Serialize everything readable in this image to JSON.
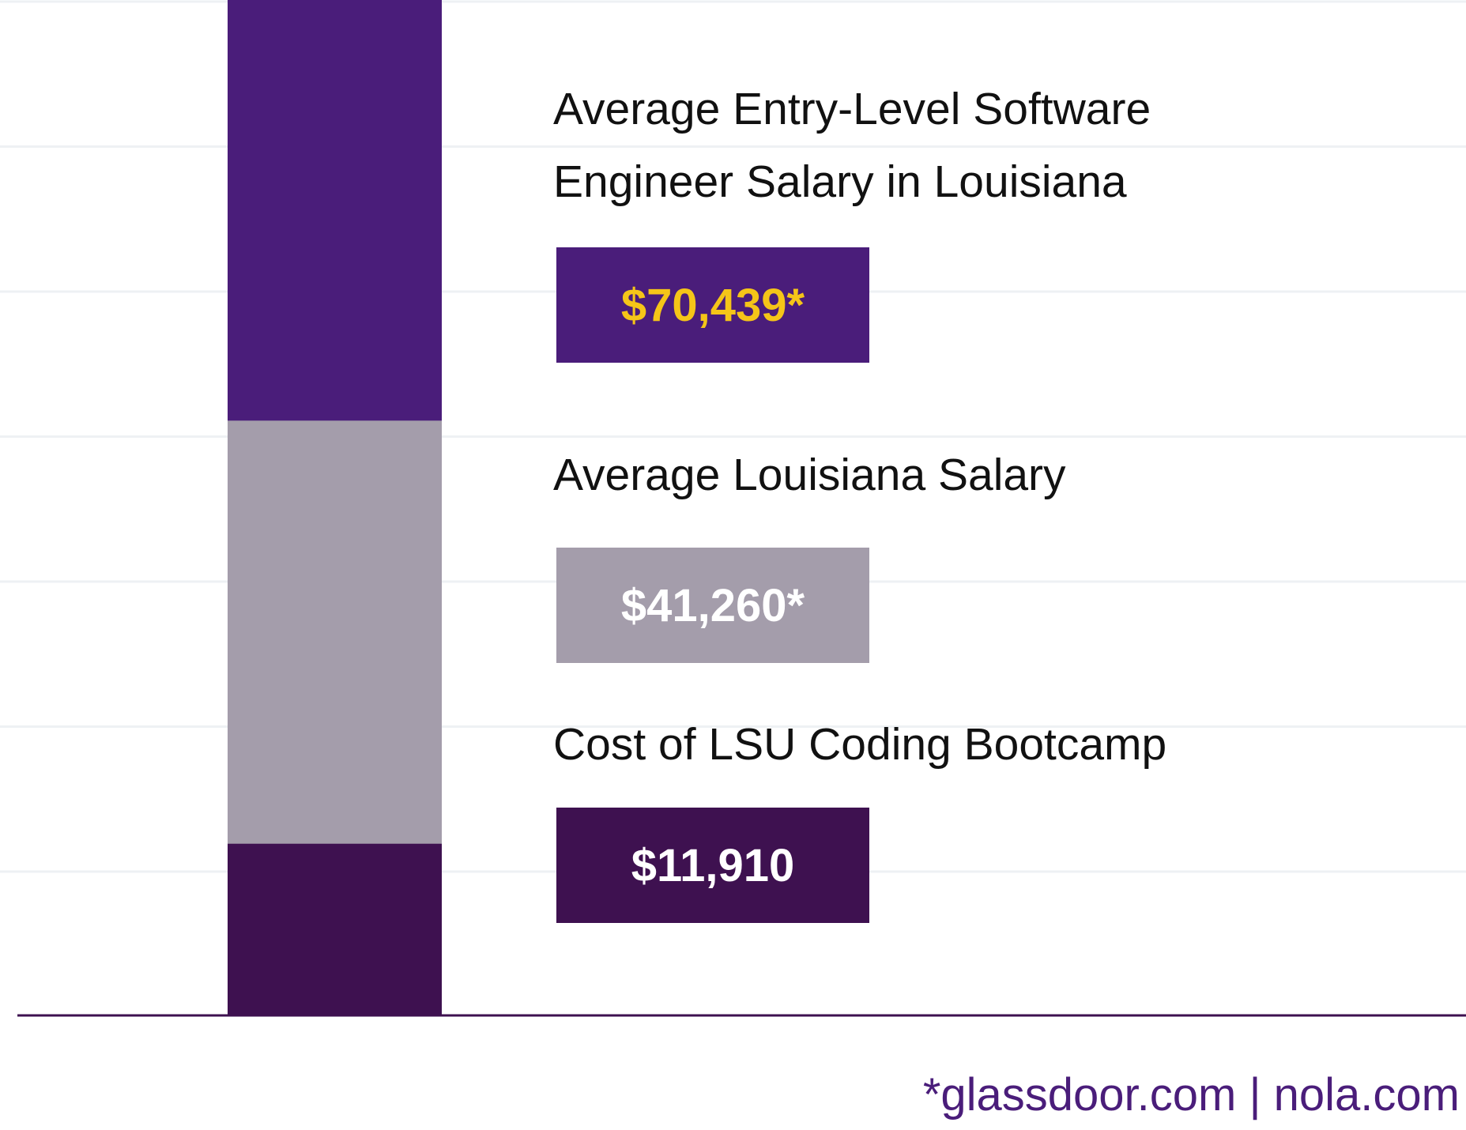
{
  "chart_data": {
    "type": "bar",
    "stacked_layers": true,
    "categories": [
      ""
    ],
    "series": [
      {
        "name": "Average Entry-Level Software Engineer Salary in Louisiana",
        "values": [
          70439
        ],
        "value_label": "$70,439*",
        "color": "#4a1d7a",
        "label_color": "#f5c518"
      },
      {
        "name": "Average Louisiana Salary",
        "values": [
          41260
        ],
        "value_label": "$41,260*",
        "color": "#a49dab",
        "label_color": "#ffffff"
      },
      {
        "name": "Cost of LSU Coding Bootcamp",
        "values": [
          11910
        ],
        "value_label": "$11,910",
        "color": "#3e1150",
        "label_color": "#ffffff"
      }
    ],
    "title": "",
    "xlabel": "",
    "ylabel": "",
    "ylim": [
      0,
      70439
    ],
    "grid": true,
    "gridline_count": 7
  },
  "labels": {
    "entry_level_line1": "Average Entry-Level Software",
    "entry_level_line2": "Engineer Salary in Louisiana",
    "average_salary": "Average Louisiana Salary",
    "bootcamp_cost": "Cost of LSU Coding Bootcamp"
  },
  "values": {
    "entry_level": "$70,439*",
    "average_salary": "$41,260*",
    "bootcamp_cost": "$11,910"
  },
  "source": "*glassdoor.com | nola.com",
  "colors": {
    "gridline": "#eef1f4",
    "baseline": "#3e1150",
    "source_text": "#4a1d7a"
  }
}
